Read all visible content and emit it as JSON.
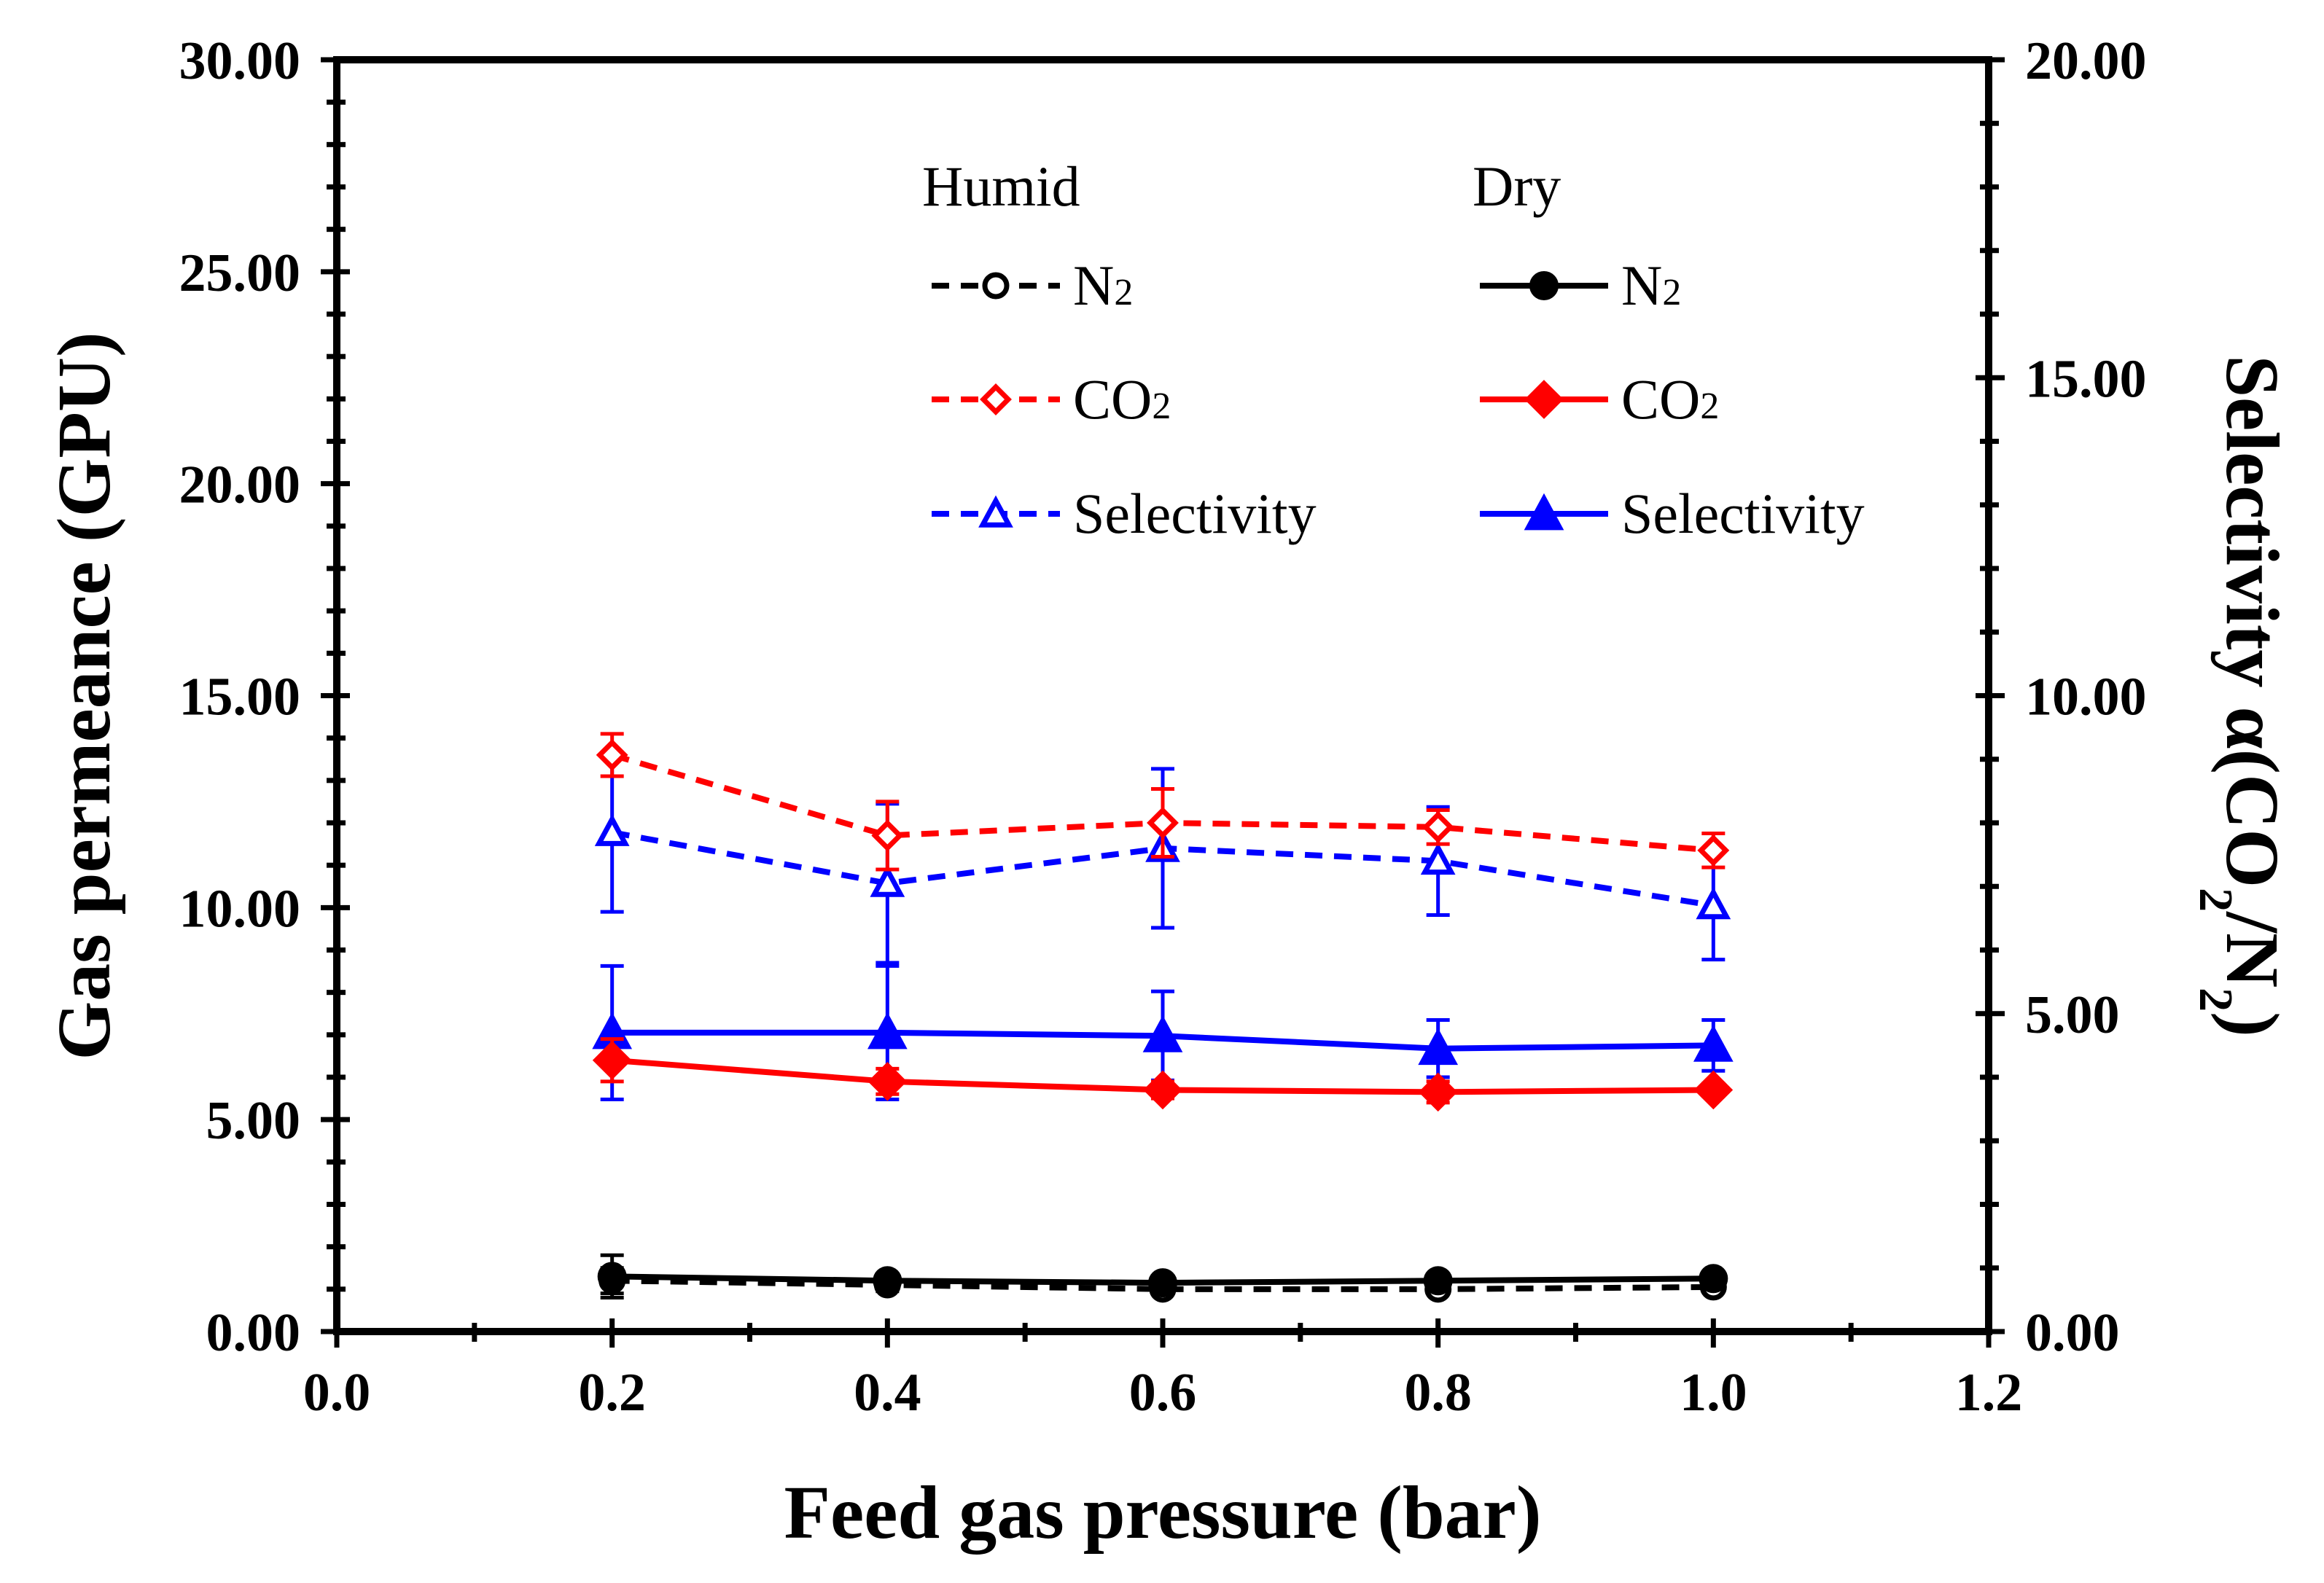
{
  "chart_data": {
    "type": "line",
    "xlabel": "Feed gas pressure (bar)",
    "ylabel": "Gas permeance (GPU)",
    "y2label_parts": [
      "Selectivity α(CO",
      "2",
      "/N",
      "2",
      ")"
    ],
    "xlim": [
      0.0,
      1.2
    ],
    "ylim": [
      0.0,
      30.0
    ],
    "y2lim": [
      0.0,
      20.0
    ],
    "x_ticks": [
      "0.0",
      "0.2",
      "0.4",
      "0.6",
      "0.8",
      "1.0",
      "1.2"
    ],
    "y_ticks": [
      "0.00",
      "5.00",
      "10.00",
      "15.00",
      "20.00",
      "25.00",
      "30.00"
    ],
    "y2_ticks": [
      "0.00",
      "5.00",
      "10.00",
      "15.00",
      "20.00"
    ],
    "legend": {
      "humid_heading": "Humid",
      "dry_heading": "Dry",
      "n2": [
        "N",
        "2"
      ],
      "co2": [
        "CO",
        "2"
      ],
      "selectivity": "Selectivity"
    },
    "x": [
      0.2,
      0.4,
      0.6,
      0.8,
      1.0
    ],
    "series": [
      {
        "name": "Humid N2",
        "axis": "left",
        "color": "#000000",
        "dashed": true,
        "marker": "circle-open",
        "values": [
          1.2,
          1.1,
          1.0,
          1.0,
          1.05
        ],
        "errors": [
          0.3,
          0.15,
          0.1,
          0.1,
          0.1
        ]
      },
      {
        "name": "Dry N2",
        "axis": "left",
        "color": "#000000",
        "dashed": false,
        "marker": "circle",
        "values": [
          1.3,
          1.2,
          1.15,
          1.2,
          1.25
        ],
        "errors": [
          0.5,
          0.15,
          0.1,
          0.1,
          0.1
        ]
      },
      {
        "name": "Humid CO2",
        "axis": "left",
        "color": "#ff0000",
        "dashed": true,
        "marker": "diamond-open",
        "values": [
          13.6,
          11.7,
          12.0,
          11.9,
          11.35
        ],
        "errors": [
          0.5,
          0.8,
          0.8,
          0.4,
          0.4
        ]
      },
      {
        "name": "Dry CO2",
        "axis": "left",
        "color": "#ff0000",
        "dashed": false,
        "marker": "diamond",
        "values": [
          6.4,
          5.9,
          5.7,
          5.65,
          5.7
        ],
        "errors": [
          0.5,
          0.3,
          0.2,
          0.25,
          0.15
        ]
      },
      {
        "name": "Humid Selectivity",
        "axis": "right",
        "color": "#0000ff",
        "dashed": true,
        "marker": "triangle-open",
        "values": [
          7.85,
          7.05,
          7.6,
          7.4,
          6.7
        ],
        "errors": [
          1.25,
          1.25,
          1.25,
          0.85,
          0.85
        ]
      },
      {
        "name": "Dry Selectivity",
        "axis": "right",
        "color": "#0000ff",
        "dashed": false,
        "marker": "triangle",
        "values": [
          4.7,
          4.7,
          4.65,
          4.45,
          4.5
        ],
        "errors": [
          1.05,
          1.05,
          0.7,
          0.45,
          0.4
        ]
      }
    ]
  }
}
